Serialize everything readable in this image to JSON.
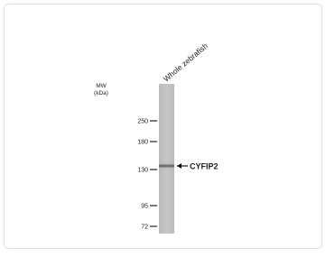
{
  "lane_label": "Whole zebrafish",
  "mw_label": [
    "MW",
    "(kDa)"
  ],
  "markers": [
    "250",
    "180",
    "130",
    "95",
    "72"
  ],
  "band_label": "CYFIP2"
}
